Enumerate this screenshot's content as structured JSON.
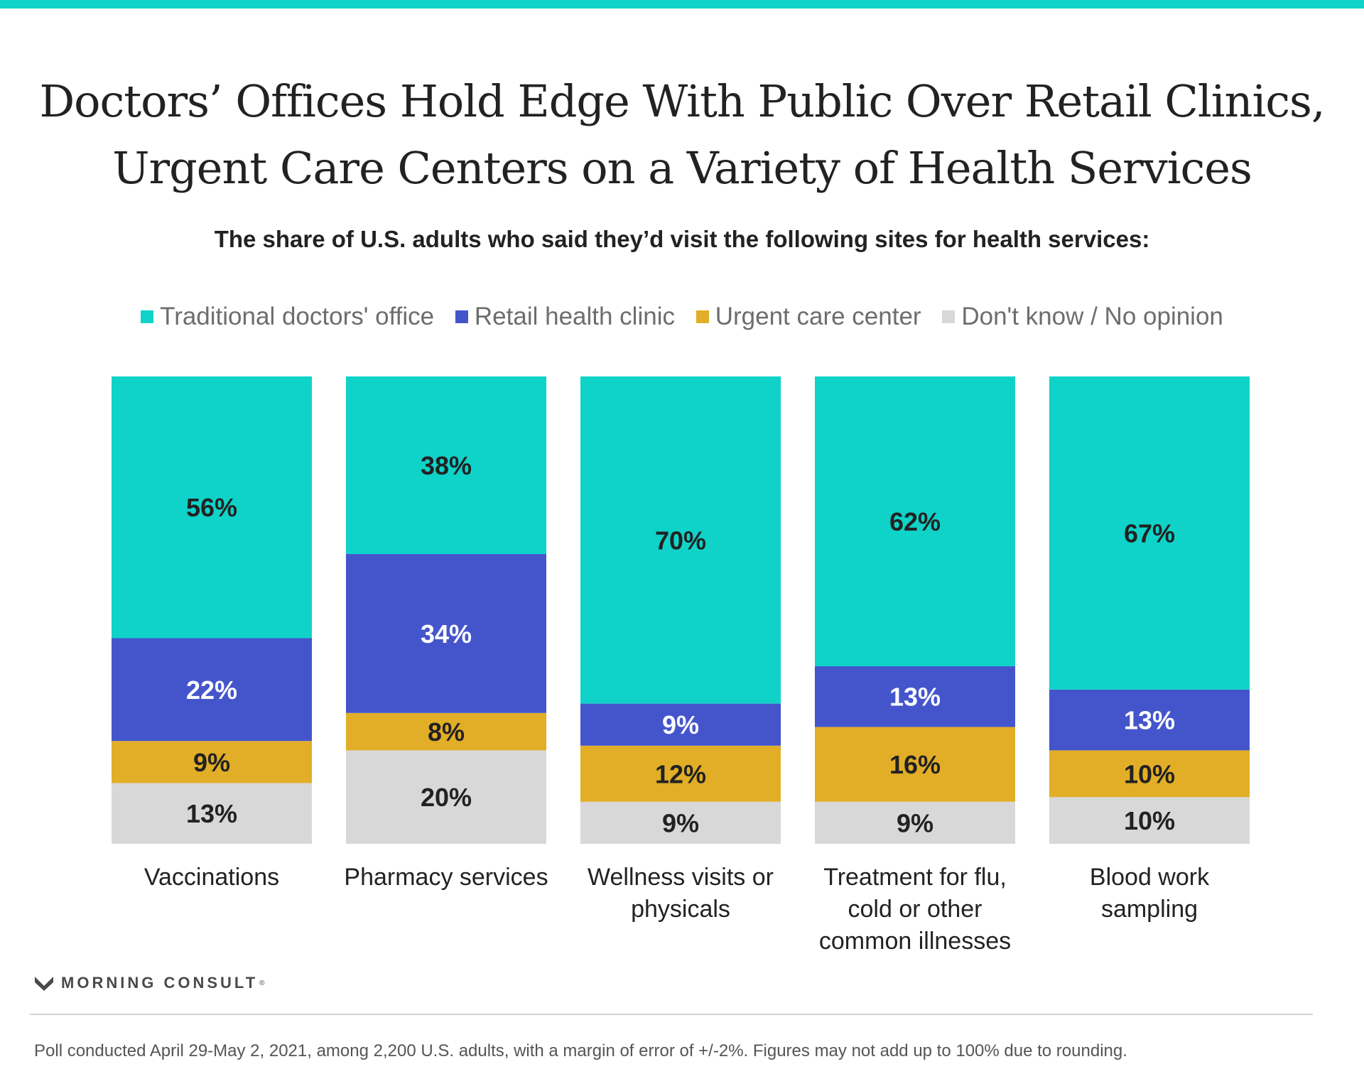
{
  "title": {
    "line1": "Doctors’ Offices Hold Edge With Public Over Retail Clinics,",
    "line2": "Urgent Care Centers on a Variety of Health Services"
  },
  "subtitle": "The share of U.S. adults who said they’d visit the following sites for health services:",
  "legend": [
    {
      "label": "Traditional doctors' office",
      "color": "#0fd3c9"
    },
    {
      "label": "Retail health clinic",
      "color": "#4455cc"
    },
    {
      "label": "Urgent care center",
      "color": "#e2ae27"
    },
    {
      "label": "Don't know / No opinion",
      "color": "#d8d8d8"
    }
  ],
  "chart_data": {
    "type": "bar",
    "stacked": true,
    "orientation": "vertical",
    "categories": [
      [
        "Vaccinations"
      ],
      [
        "Pharmacy services"
      ],
      [
        "Wellness visits or",
        "physicals"
      ],
      [
        "Treatment for flu,",
        "cold or other",
        "common illnesses"
      ],
      [
        "Blood work",
        "sampling"
      ]
    ],
    "series": [
      {
        "name": "Traditional doctors' office",
        "color": "#0fd3c9",
        "label_color": "#222222",
        "values": [
          56,
          38,
          70,
          62,
          67
        ]
      },
      {
        "name": "Retail health clinic",
        "color": "#4455cc",
        "label_color": "#ffffff",
        "values": [
          22,
          34,
          9,
          13,
          13
        ]
      },
      {
        "name": "Urgent care center",
        "color": "#e2ae27",
        "label_color": "#222222",
        "values": [
          9,
          8,
          12,
          16,
          10
        ]
      },
      {
        "name": "Don't know / No opinion",
        "color": "#d8d8d8",
        "label_color": "#222222",
        "values": [
          13,
          20,
          9,
          9,
          10
        ]
      }
    ],
    "value_suffix": "%",
    "ylim": [
      0,
      100
    ],
    "grid": false,
    "legend_position": "top"
  },
  "brand": {
    "name": "MORNING CONSULT",
    "mark": "®"
  },
  "footnote": "Poll conducted April 29-May 2, 2021, among 2,200 U.S. adults, with a margin of error of +/-2%. Figures may not add up to 100% due to rounding."
}
